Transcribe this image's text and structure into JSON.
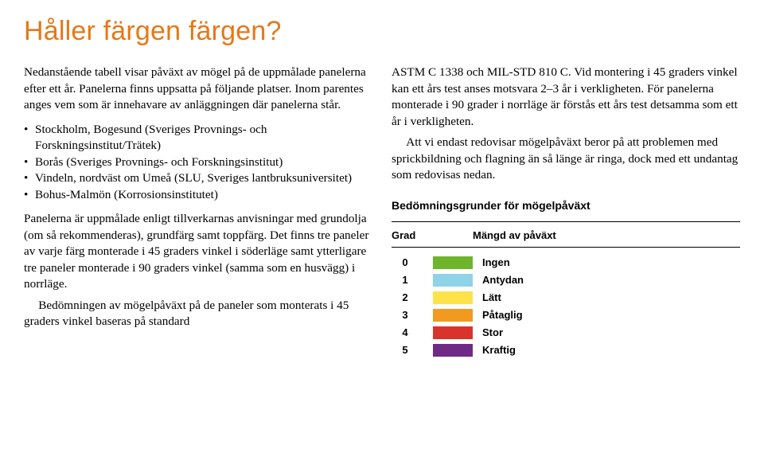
{
  "title": "Håller färgen färgen?",
  "left": {
    "p1": "Nedanstående tabell visar påväxt av mögel på de uppmålade panelerna efter ett år. Panelerna finns uppsatta på följande platser. Inom parentes anges vem som är innehavare av anläggningen där panelerna står.",
    "bullets": [
      "Stockholm, Bogesund (Sveriges Provnings- och Forskningsinstitut/Trätek)",
      "Borås (Sveriges Provnings- och Forskningsinstitut)",
      "Vindeln, nordväst om Umeå (SLU, Sveriges lantbruksuniversitet)",
      "Bohus-Malmön (Korrosionsinstitutet)"
    ],
    "p2": "Panelerna är uppmålade enligt tillverkarnas anvisningar med grundolja (om så rekommenderas), grundfärg samt toppfärg. Det finns tre paneler av varje färg monterade i 45 graders vinkel i söderläge samt ytterligare tre paneler monterade i 90 graders vinkel (samma som en husvägg) i norrläge.",
    "p3": "Bedömningen av mögelpåväxt på de paneler som monterats i 45 graders vinkel baseras på standard"
  },
  "right": {
    "p1": "ASTM C 1338 och MIL-STD 810 C. Vid montering i 45 graders vinkel kan ett års test anses motsvara 2–3 år i verkligheten. För panelerna monterade i 90 grader i norrläge är förstås ett års test detsamma som ett år i verkligheten.",
    "p2": "Att vi endast redovisar mögelpåväxt beror på att problemen med sprickbildning och flagning än så länge är ringa, dock med ett undantag som redovisas nedan.",
    "tableTitle": "Bedömningsgrunder för mögelpåväxt",
    "colGrade": "Grad",
    "colAmount": "Mängd av påväxt",
    "grades": [
      {
        "n": "0",
        "color": "#6fb52c",
        "label": "Ingen"
      },
      {
        "n": "1",
        "color": "#8fd3e8",
        "label": "Antydan"
      },
      {
        "n": "2",
        "color": "#ffe14a",
        "label": "Lätt"
      },
      {
        "n": "3",
        "color": "#f29a1f",
        "label": "Påtaglig"
      },
      {
        "n": "4",
        "color": "#d9342b",
        "label": "Stor"
      },
      {
        "n": "5",
        "color": "#6e2a86",
        "label": "Kraftig"
      }
    ]
  }
}
